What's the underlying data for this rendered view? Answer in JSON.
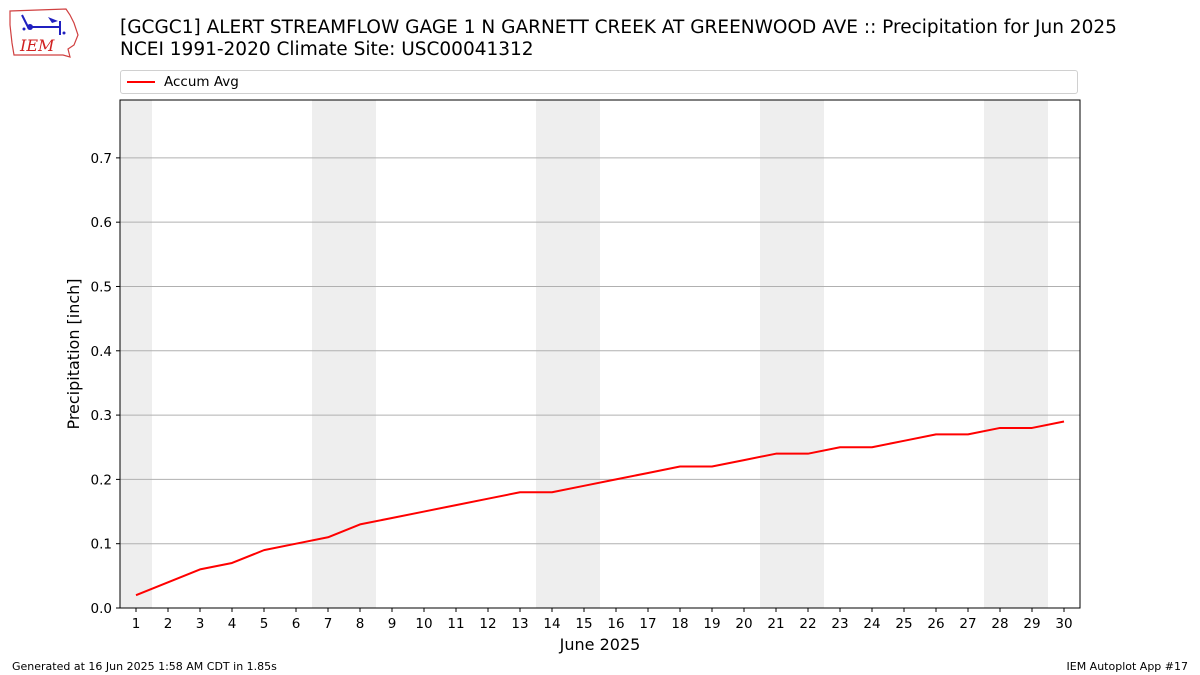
{
  "header": {
    "title_line1": "[GCGC1] ALERT STREAMFLOW GAGE 1 N GARNETT CREEK AT GREENWOOD AVE :: Precipitation for Jun 2025",
    "title_line2": "NCEI 1991-2020 Climate Site: USC00041312"
  },
  "logo": {
    "text": "IEM",
    "icon": "iem-iowa-logo"
  },
  "footer": {
    "generated": "Generated at 16 Jun 2025 1:58 AM CDT in 1.85s",
    "app": "IEM Autoplot App #17"
  },
  "chart_data": {
    "type": "line",
    "xlabel": "June 2025",
    "ylabel": "Precipitation [inch]",
    "x": [
      1,
      2,
      3,
      4,
      5,
      6,
      7,
      8,
      9,
      10,
      11,
      12,
      13,
      14,
      15,
      16,
      17,
      18,
      19,
      20,
      21,
      22,
      23,
      24,
      25,
      26,
      27,
      28,
      29,
      30
    ],
    "xlim": [
      0.5,
      30.5
    ],
    "ylim": [
      0,
      0.79
    ],
    "yticks": [
      0.0,
      0.1,
      0.2,
      0.3,
      0.4,
      0.5,
      0.6,
      0.7
    ],
    "series": [
      {
        "name": "Accum Avg",
        "color": "#ff0000",
        "values": [
          0.02,
          0.04,
          0.06,
          0.07,
          0.09,
          0.1,
          0.11,
          0.13,
          0.14,
          0.15,
          0.16,
          0.17,
          0.18,
          0.18,
          0.19,
          0.2,
          0.21,
          0.22,
          0.22,
          0.23,
          0.24,
          0.24,
          0.25,
          0.25,
          0.26,
          0.27,
          0.27,
          0.28,
          0.28,
          0.29
        ]
      }
    ],
    "weekend_bands": [
      [
        0.5,
        1.5
      ],
      [
        6.5,
        8.5
      ],
      [
        13.5,
        15.5
      ],
      [
        20.5,
        22.5
      ],
      [
        27.5,
        29.5
      ]
    ],
    "band_color": "#eeeeee",
    "grid": "horizontal",
    "legend": "top"
  }
}
